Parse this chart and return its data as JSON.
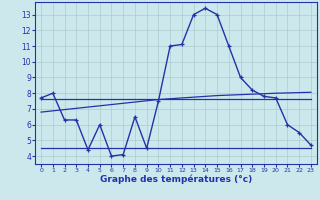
{
  "background_color": "#cce8ec",
  "grid_color": "#aacccc",
  "line_color": "#2233aa",
  "xlabel": "Graphe des températures (°c)",
  "ylim": [
    3.5,
    13.8
  ],
  "xlim": [
    -0.5,
    23.5
  ],
  "yticks": [
    4,
    5,
    6,
    7,
    8,
    9,
    10,
    11,
    12,
    13
  ],
  "xticks": [
    0,
    1,
    2,
    3,
    4,
    5,
    6,
    7,
    8,
    9,
    10,
    11,
    12,
    13,
    14,
    15,
    16,
    17,
    18,
    19,
    20,
    21,
    22,
    23
  ],
  "main_temps": [
    7.7,
    8.0,
    6.3,
    6.3,
    4.4,
    6.0,
    4.0,
    4.1,
    6.5,
    4.5,
    7.5,
    11.0,
    11.1,
    13.0,
    13.4,
    13.0,
    11.0,
    9.0,
    8.2,
    7.8,
    7.7,
    6.0,
    5.5,
    4.7
  ],
  "line_flat": [
    7.65,
    7.65,
    7.65,
    7.65,
    7.65,
    7.65,
    7.65,
    7.65,
    7.65,
    7.65,
    7.65,
    7.65,
    7.65,
    7.65,
    7.65,
    7.65,
    7.65,
    7.65,
    7.65,
    7.65,
    7.65,
    7.65,
    7.65,
    7.65
  ],
  "line_rise": [
    6.8,
    6.88,
    6.96,
    7.04,
    7.12,
    7.2,
    7.28,
    7.36,
    7.44,
    7.52,
    7.6,
    7.65,
    7.7,
    7.75,
    7.8,
    7.85,
    7.88,
    7.91,
    7.94,
    7.97,
    8.0,
    8.02,
    8.04,
    8.06
  ],
  "line_low": [
    4.5,
    4.5,
    4.5,
    4.5,
    4.5,
    4.5,
    4.5,
    4.5,
    4.5,
    4.5,
    4.5,
    4.5,
    4.5,
    4.5,
    4.5,
    4.5,
    4.5,
    4.5,
    4.5,
    4.5,
    4.5,
    4.5,
    4.5,
    4.5
  ]
}
